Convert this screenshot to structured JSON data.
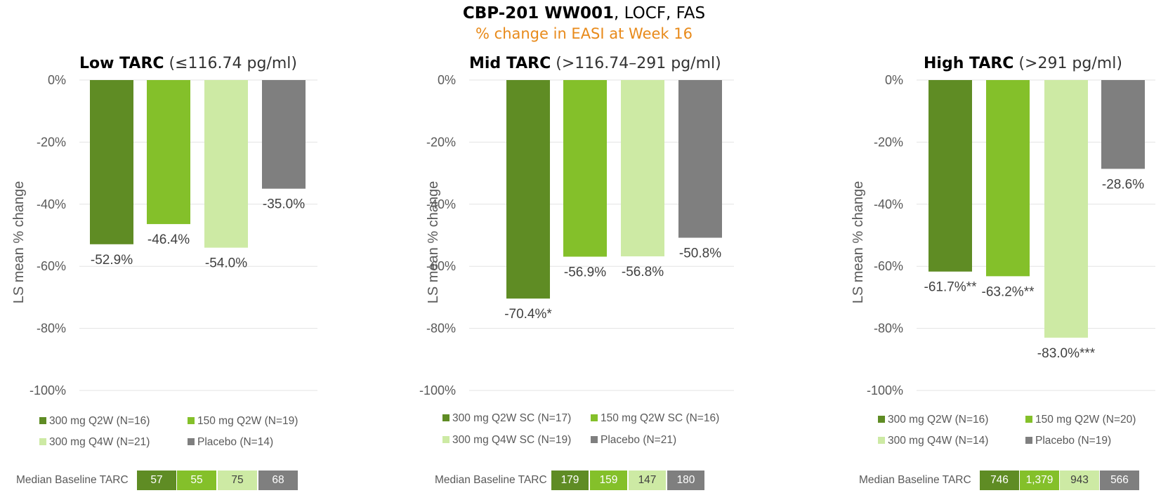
{
  "header": {
    "title_bold": "CBP-201 WW001",
    "title_rest": ", LOCF, FAS",
    "subtitle": "% change in EASI at Week 16"
  },
  "colors": {
    "dark_green": "#5f8c24",
    "green": "#84c02a",
    "light_green": "#cdeaa4",
    "gray": "#7f7f7f",
    "orange": "#e88a1a"
  },
  "baseline_label": "Median Baseline TARC",
  "chart_data": [
    {
      "type": "bar",
      "title_bold": "Low TARC",
      "title_rest": "(≤116.74 pg/ml)",
      "ylabel": "LS mean % change",
      "ylim": [
        -100,
        0
      ],
      "yticks": [
        "0%",
        "-20%",
        "-40%",
        "-60%",
        "-80%",
        "-100%"
      ],
      "grid": true,
      "values": [
        -52.9,
        -46.4,
        -54.0,
        -35.0
      ],
      "data_labels": [
        "-52.9%",
        "-46.4%",
        "-54.0%",
        "-35.0%"
      ],
      "legend": [
        "300 mg Q2W (N=16)",
        "150 mg Q2W (N=19)",
        "300 mg Q4W (N=21)",
        "Placebo (N=14)"
      ],
      "median_baseline_tarc": [
        "57",
        "55",
        "75",
        "68"
      ]
    },
    {
      "type": "bar",
      "title_bold": "Mid TARC",
      "title_rest": "(>116.74–291 pg/ml)",
      "ylabel": "LS mean % change",
      "ylim": [
        -100,
        0
      ],
      "yticks": [
        "0%",
        "-20%",
        "-40%",
        "-60%",
        "-80%",
        "-100%"
      ],
      "grid": true,
      "values": [
        -70.4,
        -56.9,
        -56.8,
        -50.8
      ],
      "data_labels": [
        "-70.4%*",
        "-56.9%",
        "-56.8%",
        "-50.8%"
      ],
      "legend": [
        "300 mg Q2W SC (N=17)",
        "150 mg Q2W SC (N=16)",
        "300 mg Q4W SC (N=19)",
        "Placebo (N=21)"
      ],
      "median_baseline_tarc": [
        "179",
        "159",
        "147",
        "180"
      ]
    },
    {
      "type": "bar",
      "title_bold": "High TARC",
      "title_rest": "(>291 pg/ml)",
      "ylabel": "LS mean % change",
      "ylim": [
        -100,
        0
      ],
      "yticks": [
        "0%",
        "-20%",
        "-40%",
        "-60%",
        "-80%",
        "-100%"
      ],
      "grid": true,
      "values": [
        -61.7,
        -63.2,
        -83.0,
        -28.6
      ],
      "data_labels": [
        "-61.7%**",
        "-63.2%**",
        "-83.0%***",
        "-28.6%"
      ],
      "legend": [
        "300 mg Q2W (N=16)",
        "150 mg Q2W (N=20)",
        "300 mg Q4W (N=14)",
        "Placebo (N=19)"
      ],
      "median_baseline_tarc": [
        "746",
        "1,379",
        "943",
        "566"
      ]
    }
  ]
}
